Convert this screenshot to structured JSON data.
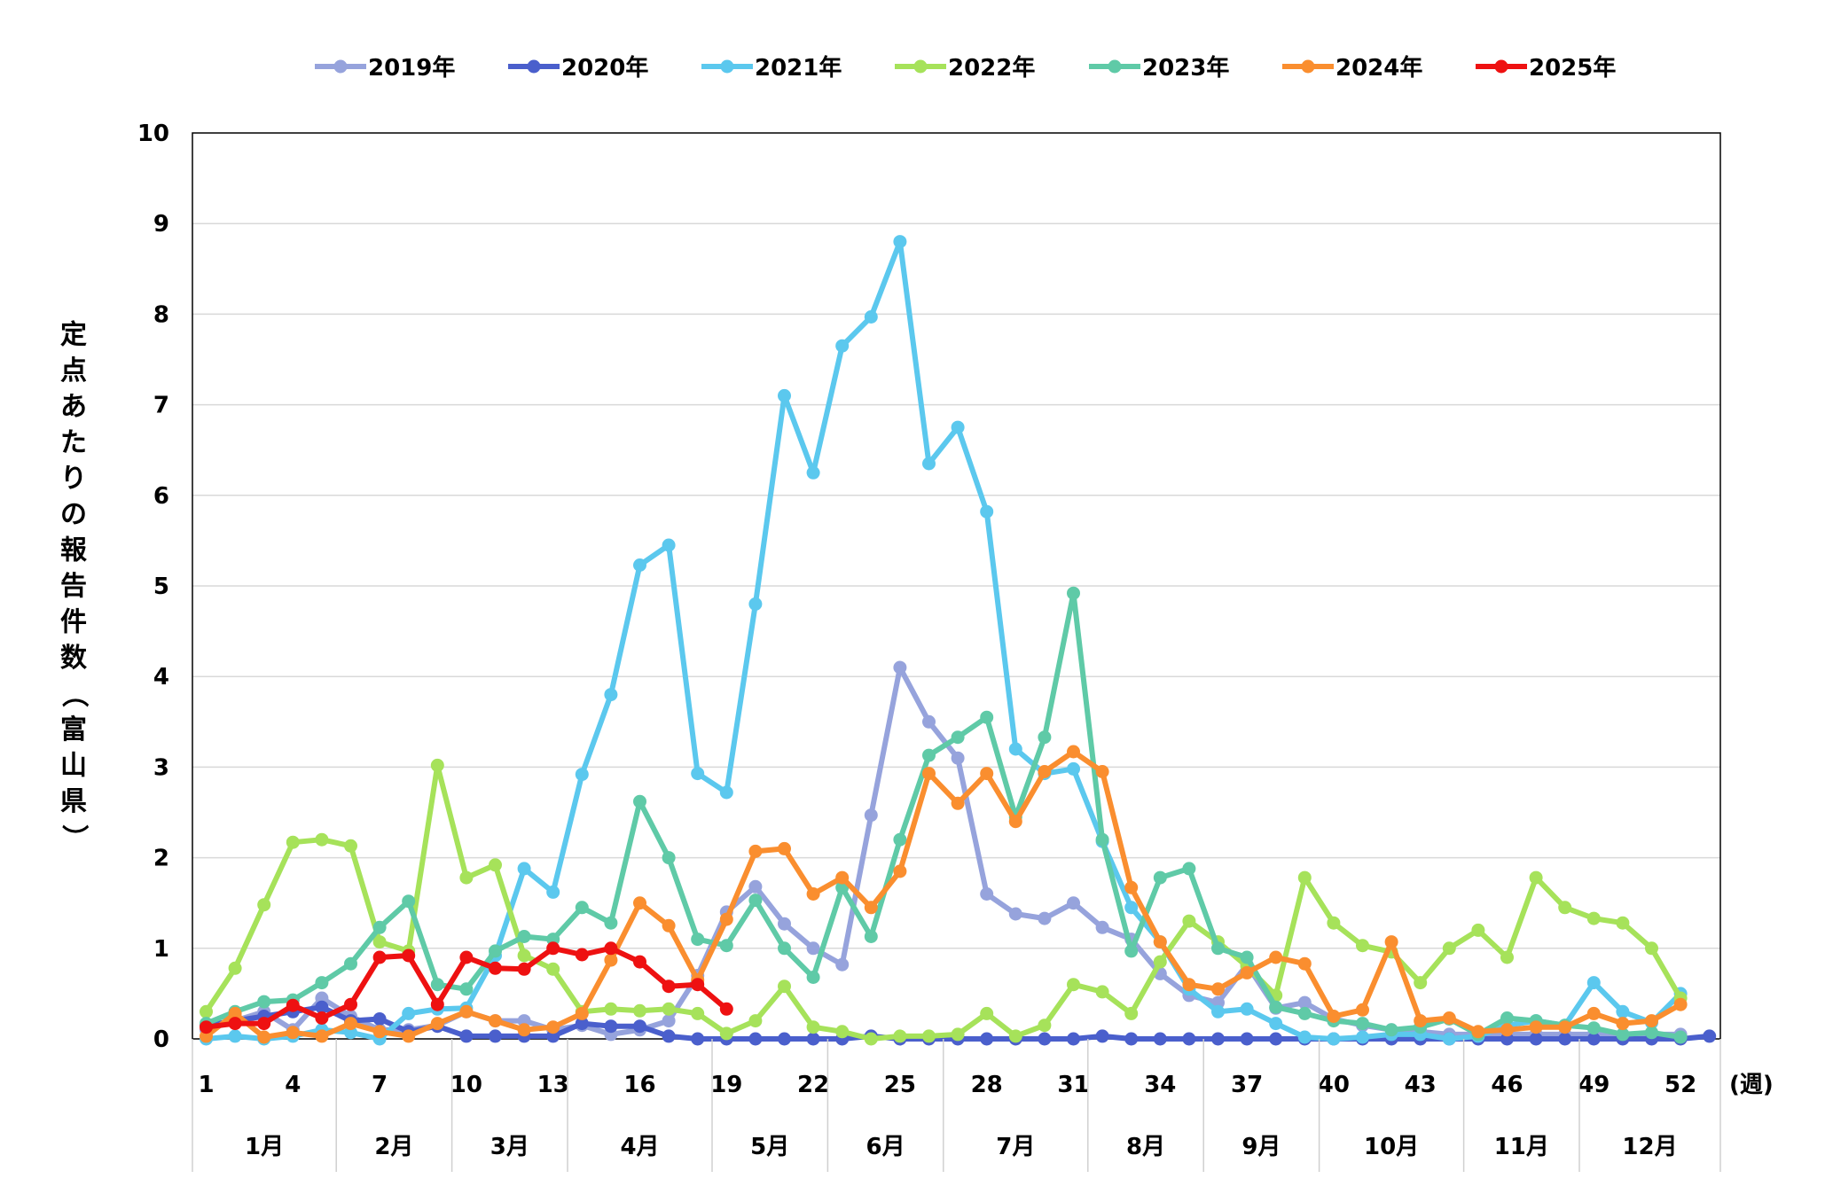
{
  "chart_data": {
    "type": "line",
    "title": "",
    "ylabel": "定点あたりの報告件数（富山県）",
    "xunit": "(週)",
    "ylim": [
      0,
      10
    ],
    "yticks": [
      0,
      1,
      2,
      3,
      4,
      5,
      6,
      7,
      8,
      9,
      10
    ],
    "xticks": [
      1,
      4,
      7,
      10,
      13,
      16,
      19,
      22,
      25,
      28,
      31,
      34,
      37,
      40,
      43,
      46,
      49,
      52
    ],
    "grid": true,
    "legend": "top",
    "months": [
      {
        "label": "1月",
        "from": 0.5,
        "to": 5.5
      },
      {
        "label": "2月",
        "from": 5.5,
        "to": 9.5
      },
      {
        "label": "3月",
        "from": 9.5,
        "to": 13.5
      },
      {
        "label": "4月",
        "from": 13.5,
        "to": 18.5
      },
      {
        "label": "5月",
        "from": 18.5,
        "to": 22.5
      },
      {
        "label": "6月",
        "from": 22.5,
        "to": 26.5
      },
      {
        "label": "7月",
        "from": 26.5,
        "to": 31.5
      },
      {
        "label": "8月",
        "from": 31.5,
        "to": 35.5
      },
      {
        "label": "9月",
        "from": 35.5,
        "to": 39.5
      },
      {
        "label": "10月",
        "from": 39.5,
        "to": 44.5
      },
      {
        "label": "11月",
        "from": 44.5,
        "to": 48.5
      },
      {
        "label": "12月",
        "from": 48.5,
        "to": 53.5
      }
    ],
    "series": [
      {
        "name": "2019年",
        "color": "#96a3dc",
        "start": 1,
        "values": [
          0.1,
          0.2,
          0.3,
          0.1,
          0.45,
          0.25,
          0.1,
          0.1,
          0.15,
          0.3,
          0.2,
          0.2,
          0.1,
          0.15,
          0.05,
          0.1,
          0.2,
          0.7,
          1.4,
          1.68,
          1.27,
          1.0,
          0.82,
          2.47,
          4.1,
          3.5,
          3.1,
          1.6,
          1.38,
          1.33,
          1.5,
          1.23,
          1.1,
          0.72,
          0.48,
          0.4,
          0.82,
          0.34,
          0.4,
          0.22,
          0.15,
          0.1,
          0.08,
          0.05,
          0.05,
          0.05,
          0.05,
          0.05,
          0.05,
          0.05,
          0.05,
          0.05
        ]
      },
      {
        "name": "2020年",
        "color": "#4a5fcc",
        "start": 1,
        "values": [
          0.15,
          0.2,
          0.25,
          0.3,
          0.35,
          0.2,
          0.22,
          0.08,
          0.14,
          0.03,
          0.03,
          0.03,
          0.03,
          0.17,
          0.14,
          0.14,
          0.03,
          0,
          0,
          0,
          0,
          0,
          0,
          0.03,
          0,
          0,
          0,
          0,
          0,
          0,
          0,
          0.03,
          0,
          0,
          0,
          0,
          0,
          0,
          0,
          0,
          0,
          0,
          0,
          0,
          0,
          0,
          0,
          0,
          0,
          0,
          0,
          0,
          0.03
        ]
      },
      {
        "name": "2021年",
        "color": "#5bc8ee",
        "start": 1,
        "values": [
          0,
          0.03,
          0,
          0.03,
          0.1,
          0.07,
          0,
          0.28,
          0.33,
          0.34,
          0.92,
          1.88,
          1.62,
          2.92,
          3.8,
          5.23,
          5.45,
          2.93,
          2.72,
          4.8,
          7.1,
          6.25,
          7.65,
          7.97,
          8.8,
          6.35,
          6.75,
          5.82,
          3.2,
          2.93,
          2.98,
          2.18,
          1.45,
          1.07,
          0.55,
          0.3,
          0.33,
          0.17,
          0.02,
          0,
          0.02,
          0.05,
          0.05,
          0,
          0.03,
          0.15,
          0.2,
          0.15,
          0.62,
          0.3,
          0.18,
          0.5
        ]
      },
      {
        "name": "2022年",
        "color": "#a6e25a",
        "start": 1,
        "values": [
          0.3,
          0.78,
          1.48,
          2.17,
          2.2,
          2.13,
          1.07,
          0.97,
          3.02,
          1.78,
          1.92,
          0.92,
          0.77,
          0.3,
          0.33,
          0.31,
          0.33,
          0.28,
          0.06,
          0.2,
          0.58,
          0.13,
          0.08,
          0,
          0.03,
          0.03,
          0.05,
          0.28,
          0.03,
          0.15,
          0.6,
          0.52,
          0.28,
          0.85,
          1.3,
          1.07,
          0.8,
          0.48,
          1.78,
          1.28,
          1.03,
          0.96,
          0.62,
          1.0,
          1.2,
          0.9,
          1.78,
          1.45,
          1.33,
          1.28,
          1.0,
          0.45
        ]
      },
      {
        "name": "2023年",
        "color": "#5fcaa7",
        "start": 1,
        "values": [
          0.17,
          0.3,
          0.41,
          0.43,
          0.62,
          0.83,
          1.23,
          1.52,
          0.6,
          0.55,
          0.97,
          1.13,
          1.1,
          1.45,
          1.28,
          2.62,
          2.0,
          1.1,
          1.03,
          1.53,
          1.0,
          0.68,
          1.67,
          1.13,
          2.2,
          3.13,
          3.33,
          3.55,
          2.45,
          3.33,
          4.92,
          2.2,
          0.97,
          1.78,
          1.88,
          1.0,
          0.9,
          0.35,
          0.28,
          0.2,
          0.17,
          0.1,
          0.13,
          0.22,
          0.05,
          0.23,
          0.2,
          0.15,
          0.12,
          0.05,
          0.07,
          0.02
        ]
      },
      {
        "name": "2024年",
        "color": "#fa8e2f",
        "start": 1,
        "values": [
          0.03,
          0.28,
          0.02,
          0.07,
          0.03,
          0.17,
          0.08,
          0.03,
          0.17,
          0.3,
          0.2,
          0.1,
          0.13,
          0.28,
          0.87,
          1.5,
          1.25,
          0.65,
          1.32,
          2.07,
          2.1,
          1.6,
          1.78,
          1.45,
          1.85,
          2.93,
          2.6,
          2.93,
          2.4,
          2.95,
          3.17,
          2.95,
          1.67,
          1.07,
          0.6,
          0.55,
          0.73,
          0.9,
          0.83,
          0.25,
          0.32,
          1.07,
          0.2,
          0.23,
          0.08,
          0.1,
          0.13,
          0.13,
          0.28,
          0.17,
          0.2,
          0.38
        ]
      },
      {
        "name": "2025年",
        "color": "#ee1111",
        "start": 1,
        "values": [
          0.13,
          0.17,
          0.17,
          0.37,
          0.23,
          0.38,
          0.9,
          0.92,
          0.38,
          0.9,
          0.78,
          0.77,
          1.0,
          0.93,
          1.0,
          0.85,
          0.58,
          0.6,
          0.33
        ]
      }
    ]
  }
}
